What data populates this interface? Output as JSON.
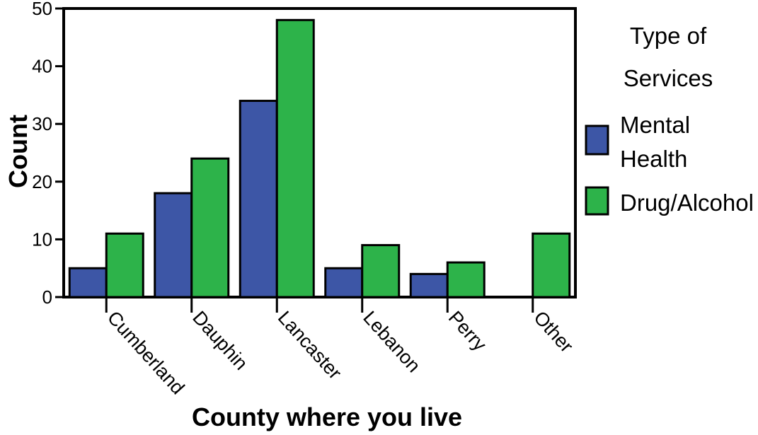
{
  "chart_data": {
    "type": "bar",
    "xlabel": "County where you live",
    "ylabel": "Count",
    "ylim": [
      0,
      50
    ],
    "yticks": [
      0,
      10,
      20,
      30,
      40,
      50
    ],
    "categories": [
      "Cumberland",
      "Dauphin",
      "Lancaster",
      "Lebanon",
      "Perry",
      "Other"
    ],
    "legend": {
      "title_lines": [
        "Type of",
        "Services"
      ],
      "placement": "right"
    },
    "series": [
      {
        "name": "Mental Health",
        "name_lines": [
          "Mental",
          "Health"
        ],
        "color": "#3d56a6",
        "values": [
          5,
          18,
          34,
          5,
          4,
          0
        ]
      },
      {
        "name": "Drug/Alcohol",
        "name_lines": [
          "Drug/Alcohol"
        ],
        "color": "#2db34a",
        "values": [
          11,
          24,
          48,
          9,
          6,
          11
        ]
      }
    ],
    "grid": false
  }
}
